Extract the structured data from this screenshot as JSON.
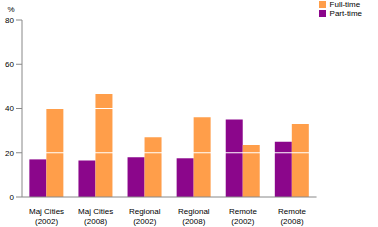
{
  "chart_data": {
    "type": "bar",
    "y_label": "%",
    "categories": [
      "Maj Cities (2002)",
      "Maj Cities (2008)",
      "Regional (2002)",
      "Regional (2008)",
      "Remote (2002)",
      "Remote (2008)"
    ],
    "series": [
      {
        "name": "Part-time",
        "color": "#8b068b",
        "values": [
          17,
          16.5,
          18,
          17.5,
          35,
          25
        ]
      },
      {
        "name": "Full-time",
        "color": "#ff9e4a",
        "values": [
          40,
          46.5,
          27,
          36,
          23.5,
          33
        ]
      }
    ],
    "ylim": [
      0,
      80
    ],
    "yticks": [
      0,
      20,
      40,
      60,
      80
    ],
    "grid": true,
    "legend": "top-right"
  }
}
